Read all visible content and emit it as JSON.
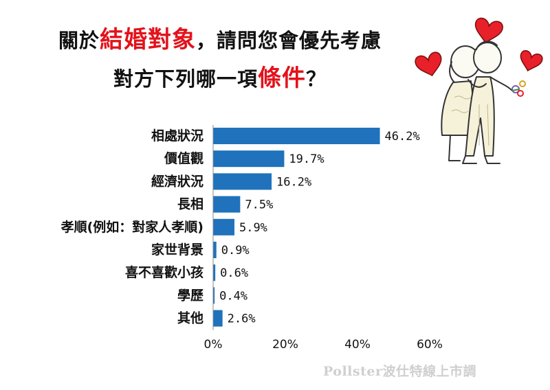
{
  "title": {
    "line1_pre": "關於",
    "line1_hl": "結婚對象",
    "line1_post": "，請問您會優先考慮",
    "line2_pre": "對方下列哪一項",
    "line2_hl": "條件",
    "line2_post": "？"
  },
  "colors": {
    "bar": "#1f72bb",
    "highlight": "#e3121b",
    "heart": "#e8202a"
  },
  "chart_data": {
    "type": "bar",
    "orientation": "horizontal",
    "categories": [
      "相處狀況",
      "價值觀",
      "經濟狀況",
      "長相",
      "孝順(例如：對家人孝順)",
      "家世背景",
      "喜不喜歡小孩",
      "學歷",
      "其他"
    ],
    "values": [
      46.2,
      19.7,
      16.2,
      7.5,
      5.9,
      0.9,
      0.6,
      0.4,
      2.6
    ],
    "value_labels": [
      "46.2%",
      "19.7%",
      "16.2%",
      "7.5%",
      "5.9%",
      "0.9%",
      "0.6%",
      "0.4%",
      "2.6%"
    ],
    "xlim": [
      0,
      60
    ],
    "xticks": [
      0,
      20,
      40,
      60
    ],
    "xtick_labels": [
      "0%",
      "20%",
      "40%",
      "60%"
    ],
    "grid": false
  },
  "watermark": "Pollster波仕特線上市調",
  "illustration": {
    "icon": "couple-with-hearts-icon"
  }
}
